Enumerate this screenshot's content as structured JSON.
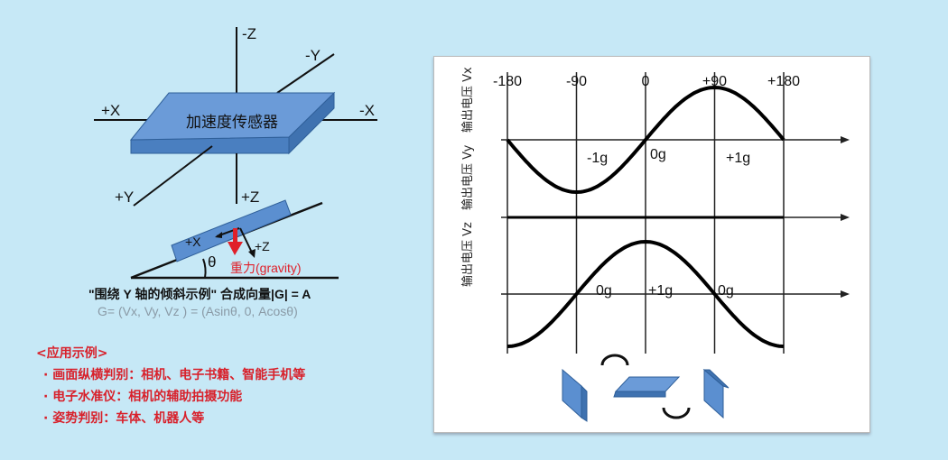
{
  "sensor": {
    "label": "加速度传感器",
    "axes": {
      "minus_z": "-Z",
      "minus_y": "-Y",
      "plus_x": "+X",
      "minus_x": "-X",
      "plus_y": "+Y",
      "plus_z": "+Z"
    }
  },
  "incline": {
    "x_label": "+X",
    "z_label": "+Z",
    "angle_label": "θ",
    "gravity_label": "重力(gravity)",
    "caption": "\"围绕 Y 轴的倾斜示例\"  合成向量|G| = A",
    "formula": "G= (Vx, Vy, Vz ) = (Asinθ, 0, Acosθ)"
  },
  "applications": {
    "title": "<应用示例>",
    "items": [
      "· 画面纵横判别：相机、电子书籍、智能手机等",
      "· 电子水准仪：相机的辅助拍摄功能",
      "· 姿势判别：车体、机器人等"
    ]
  },
  "chart": {
    "angle_ticks": [
      "-180",
      "-90",
      "0",
      "+90",
      "+180"
    ],
    "angle_values": [
      -180,
      -90,
      0,
      90,
      180
    ],
    "rows": [
      {
        "ylabel": "输出电压 Vx",
        "function": "sin",
        "point_labels": [
          "-1g",
          "0g",
          "+1g"
        ]
      },
      {
        "ylabel": "输出电压 Vy",
        "function": "zero",
        "point_labels": []
      },
      {
        "ylabel": "输出电压 Vz",
        "function": "cos",
        "point_labels": [
          "0g",
          "+1g",
          "0g"
        ]
      }
    ]
  },
  "colors": {
    "background": "#c6e8f6",
    "block": "#5b8fd0",
    "gravity": "#e0202a",
    "text_red": "#d8202a"
  }
}
